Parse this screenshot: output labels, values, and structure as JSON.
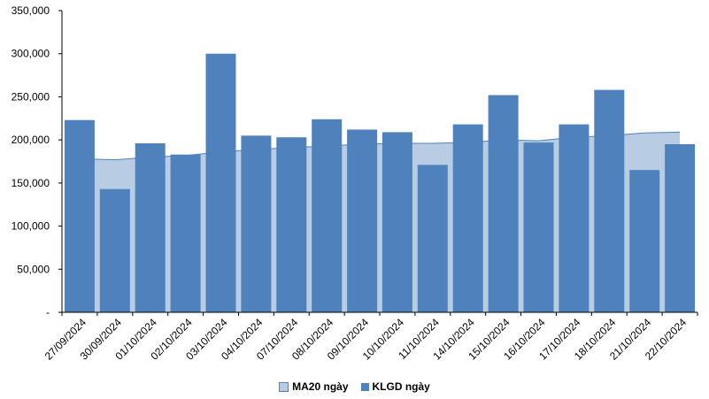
{
  "chart_data": {
    "type": "bar",
    "categories": [
      "27/09/2024",
      "30/09/2024",
      "01/10/2024",
      "02/10/2024",
      "03/10/2024",
      "04/10/2024",
      "07/10/2024",
      "08/10/2024",
      "09/10/2024",
      "10/10/2024",
      "11/10/2024",
      "14/10/2024",
      "15/10/2024",
      "16/10/2024",
      "17/10/2024",
      "18/10/2024",
      "21/10/2024",
      "22/10/2024"
    ],
    "series": [
      {
        "name": "MA20 ngày",
        "type": "area",
        "color": "#b8cce4",
        "values": [
          178000,
          177000,
          180000,
          182000,
          186000,
          189000,
          191000,
          193000,
          195000,
          196000,
          196000,
          197000,
          200000,
          199000,
          203000,
          205000,
          208000,
          209000
        ]
      },
      {
        "name": "KLGD ngày",
        "type": "bar",
        "color": "#4f81bd",
        "values": [
          223000,
          143000,
          196000,
          183000,
          300000,
          205000,
          203000,
          224000,
          212000,
          209000,
          171000,
          218000,
          252000,
          197000,
          218000,
          258000,
          165000,
          195000
        ]
      }
    ],
    "yticks": [
      "-",
      "50,000",
      "100,000",
      "150,000",
      "200,000",
      "250,000",
      "300,000",
      "350,000"
    ],
    "ylim": [
      0,
      350000
    ],
    "grid": false,
    "legend_position": "bottom"
  },
  "legend": {
    "ma20_label": "MA20 ngày",
    "klgd_label": "KLGD ngày",
    "ma20_color": "#b8cce4",
    "klgd_color": "#4f81bd"
  }
}
